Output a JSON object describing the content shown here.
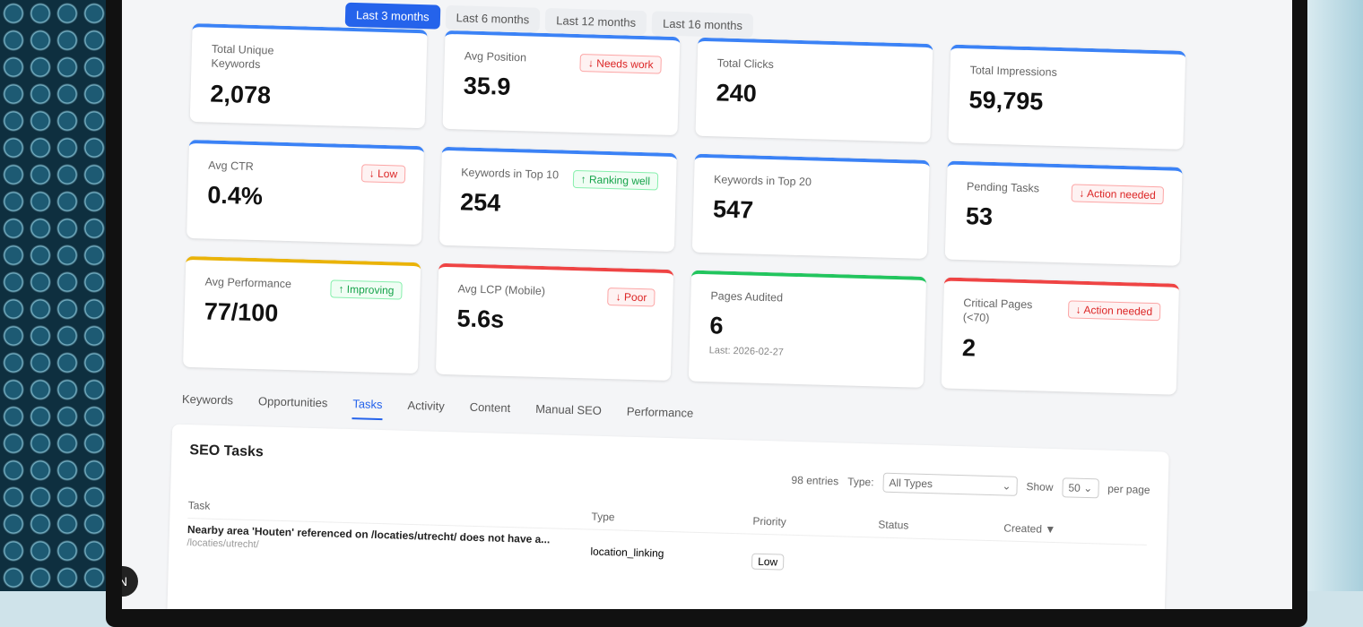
{
  "date_ranges": [
    "Last 3 months",
    "Last 6 months",
    "Last 12 months",
    "Last 16 months"
  ],
  "cards": [
    {
      "label": "Total Unique Keywords",
      "value": "2,078",
      "accent": "#3b82f6"
    },
    {
      "label": "Avg Position",
      "value": "35.9",
      "badge": "↓ Needs work",
      "badge_kind": "bad",
      "accent": "#3b82f6"
    },
    {
      "label": "Total Clicks",
      "value": "240",
      "accent": "#3b82f6"
    },
    {
      "label": "Total Impressions",
      "value": "59,795",
      "accent": "#3b82f6"
    },
    {
      "label": "Avg CTR",
      "value": "0.4%",
      "badge": "↓ Low",
      "badge_kind": "bad",
      "accent": "#3b82f6"
    },
    {
      "label": "Keywords in Top 10",
      "value": "254",
      "badge": "↑ Ranking well",
      "badge_kind": "good",
      "accent": "#3b82f6"
    },
    {
      "label": "Keywords in Top 20",
      "value": "547",
      "accent": "#3b82f6"
    },
    {
      "label": "Pending Tasks",
      "value": "53",
      "badge": "↓ Action needed",
      "badge_kind": "bad",
      "accent": "#3b82f6"
    },
    {
      "label": "Avg Performance",
      "value": "77/100",
      "badge": "↑ Improving",
      "badge_kind": "good",
      "accent": "#eab308"
    },
    {
      "label": "Avg LCP (Mobile)",
      "value": "5.6s",
      "badge": "↓ Poor",
      "badge_kind": "bad",
      "accent": "#ef4444"
    },
    {
      "label": "Pages Audited",
      "value": "6",
      "sub": "Last: 2026-02-27",
      "accent": "#22c55e"
    },
    {
      "label": "Critical Pages (<70)",
      "value": "2",
      "badge": "↓ Action needed",
      "badge_kind": "bad",
      "accent": "#ef4444"
    }
  ],
  "tabs": [
    "Keywords",
    "Opportunities",
    "Tasks",
    "Activity",
    "Content",
    "Manual SEO",
    "Performance"
  ],
  "active_tab": "Tasks",
  "panel": {
    "title": "SEO Tasks",
    "entries": "98 entries",
    "type_label": "Type:",
    "type_value": "All Types",
    "show_label": "Show",
    "show_value": "50",
    "per_page": "per page"
  },
  "columns": [
    "Task",
    "Type",
    "Priority",
    "Status",
    "Created ▼"
  ],
  "rows": [
    {
      "task": "Nearby area 'Houten' referenced on /locaties/utrecht/ does not have a...",
      "url": "/locaties/utrecht/",
      "type": "location_linking",
      "priority": "Low"
    }
  ],
  "avatar": "N"
}
